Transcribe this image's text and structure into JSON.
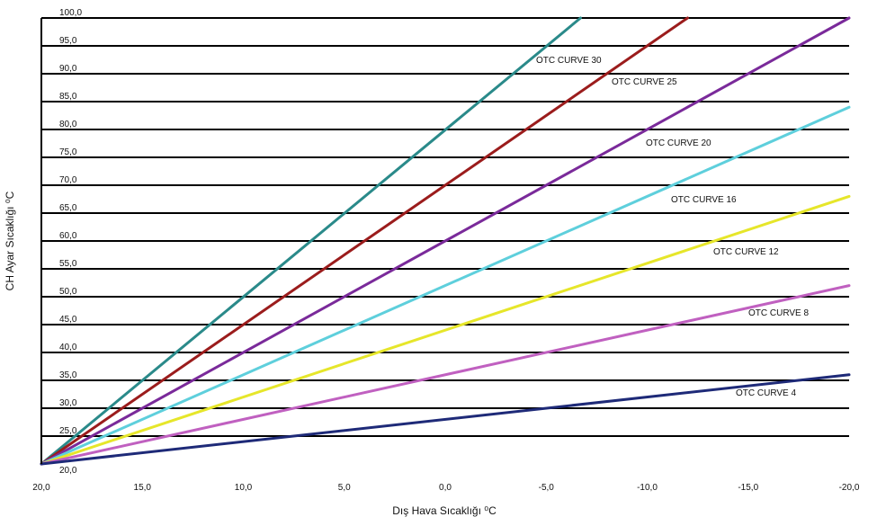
{
  "chart_data": {
    "type": "line",
    "xlabel": "Dış Hava Sıcaklığı ⁰C",
    "ylabel": "CH Ayar Sıcaklığı ⁰C",
    "xlim": [
      20,
      -20
    ],
    "ylim": [
      20,
      100
    ],
    "x_ticks": [
      "20,0",
      "15,0",
      "10,0",
      "5,0",
      "0,0",
      "-5,0",
      "-10,0",
      "-15,0",
      "-20,0"
    ],
    "y_ticks": [
      "20,0",
      "25,0",
      "30,0",
      "35,0",
      "40,0",
      "45,0",
      "50,0",
      "55,0",
      "60,0",
      "65,0",
      "70,0",
      "75,0",
      "80,0",
      "85,0",
      "90,0",
      "95,0",
      "100,0"
    ],
    "grid": "horizontal",
    "series": [
      {
        "name": "OTC CURVE 30",
        "color": "#2a8a8a",
        "x": [
          20,
          -6.7
        ],
        "y": [
          20,
          100
        ]
      },
      {
        "name": "OTC CURVE 25",
        "color": "#9b1c1c",
        "x": [
          20,
          -12
        ],
        "y": [
          20,
          100
        ]
      },
      {
        "name": "OTC CURVE 20",
        "color": "#7a2a9a",
        "x": [
          20,
          -20
        ],
        "y": [
          20,
          100
        ]
      },
      {
        "name": "OTC CURVE 16",
        "color": "#5ecfdc",
        "x": [
          20,
          -20
        ],
        "y": [
          20,
          84
        ]
      },
      {
        "name": "OTC CURVE 12",
        "color": "#e6e62a",
        "x": [
          20,
          -20
        ],
        "y": [
          20,
          68
        ]
      },
      {
        "name": "OTC CURVE 8",
        "color": "#c060c0",
        "x": [
          20,
          -20
        ],
        "y": [
          20,
          52
        ]
      },
      {
        "name": "OTC CURVE 4",
        "color": "#1e2a78",
        "x": [
          20,
          -20
        ],
        "y": [
          20,
          36
        ]
      }
    ]
  }
}
